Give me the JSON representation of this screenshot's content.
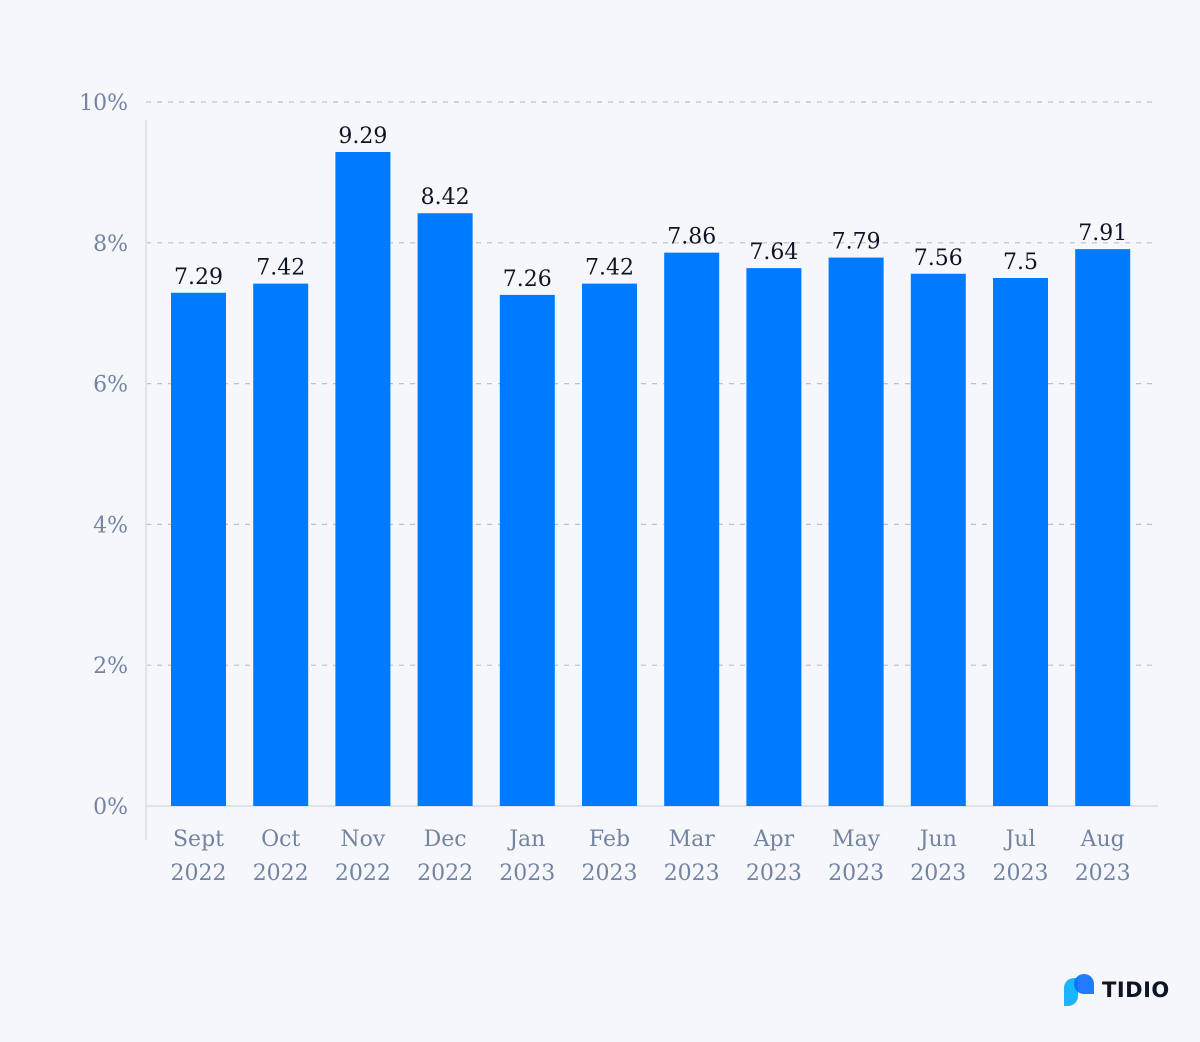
{
  "chart_data": {
    "type": "bar",
    "categories": [
      [
        "Sept",
        "2022"
      ],
      [
        "Oct",
        "2022"
      ],
      [
        "Nov",
        "2022"
      ],
      [
        "Dec",
        "2022"
      ],
      [
        "Jan",
        "2023"
      ],
      [
        "Feb",
        "2023"
      ],
      [
        "Mar",
        "2023"
      ],
      [
        "Apr",
        "2023"
      ],
      [
        "May",
        "2023"
      ],
      [
        "Jun",
        "2023"
      ],
      [
        "Jul",
        "2023"
      ],
      [
        "Aug",
        "2023"
      ]
    ],
    "values": [
      7.29,
      7.42,
      9.29,
      8.42,
      7.26,
      7.42,
      7.86,
      7.64,
      7.79,
      7.56,
      7.5,
      7.91
    ],
    "data_labels": [
      "7.29",
      "7.42",
      "9.29",
      "8.42",
      "7.26",
      "7.42",
      "7.86",
      "7.64",
      "7.79",
      "7.56",
      "7.5",
      "7.91"
    ],
    "yticks": [
      0,
      2,
      4,
      6,
      8,
      10
    ],
    "ytick_labels": [
      "0%",
      "2%",
      "4%",
      "6%",
      "8%",
      "10%"
    ],
    "ylim": [
      0,
      10
    ],
    "grid": true,
    "bar_color": "#007bff",
    "title": "",
    "xlabel": "",
    "ylabel": ""
  },
  "logo": {
    "text": "TIDIO",
    "icon": "tidio-chat-bubbles-icon"
  }
}
